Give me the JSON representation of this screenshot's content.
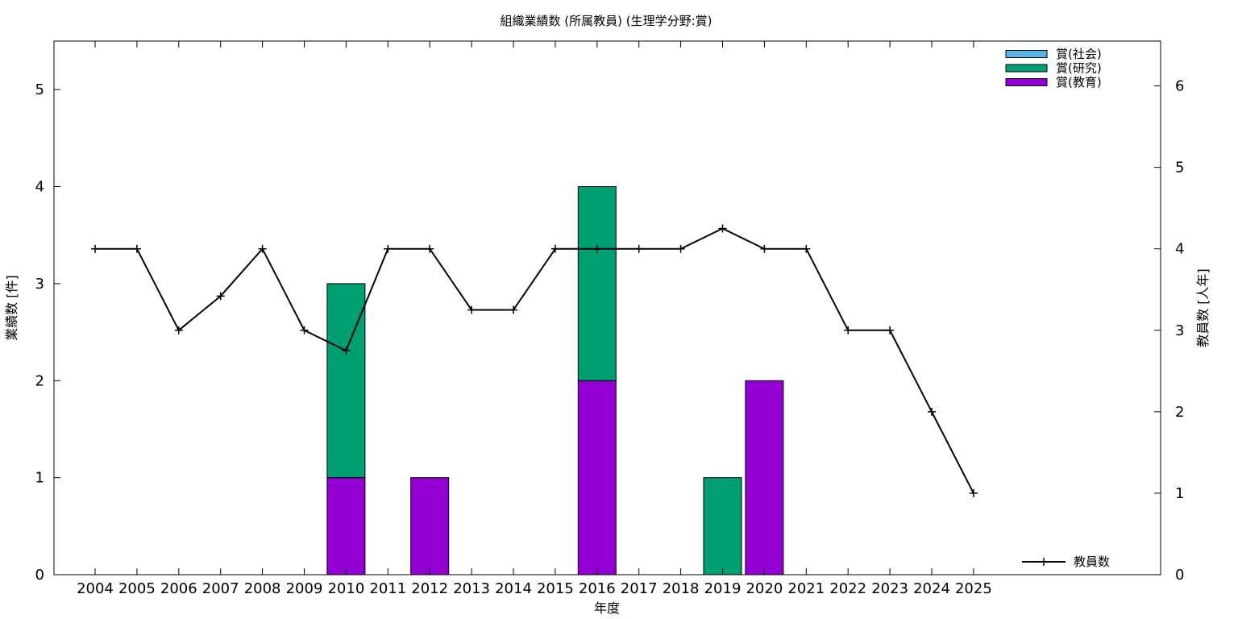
{
  "chart_data": {
    "type": "bar",
    "title": "組織業績数 (所属教員) (生理学分野:賞)",
    "xlabel": "年度",
    "ylabel": "業績数 [件]",
    "y2label": "教員数 [人年]",
    "categories": [
      "2004",
      "2005",
      "2006",
      "2007",
      "2008",
      "2009",
      "2010",
      "2011",
      "2012",
      "2013",
      "2014",
      "2015",
      "2016",
      "2017",
      "2018",
      "2019",
      "2020",
      "2021",
      "2022",
      "2023",
      "2024",
      "2025"
    ],
    "ylim": [
      0,
      5.5
    ],
    "yticks": [
      0,
      1,
      2,
      3,
      4,
      5
    ],
    "y2lim": [
      0,
      6.55
    ],
    "y2ticks": [
      0,
      1,
      2,
      3,
      4,
      5,
      6
    ],
    "stacked": true,
    "series": [
      {
        "name": "賞(教育)",
        "color": "#9400d3",
        "values": [
          0,
          0,
          0,
          0,
          0,
          0,
          1,
          0,
          1,
          0,
          0,
          0,
          2,
          0,
          0,
          0,
          2,
          0,
          0,
          0,
          0,
          0
        ]
      },
      {
        "name": "賞(研究)",
        "color": "#009e73",
        "values": [
          0,
          0,
          0,
          0,
          0,
          0,
          2,
          0,
          0,
          0,
          0,
          0,
          2,
          0,
          0,
          1,
          0,
          0,
          0,
          0,
          0,
          0
        ]
      },
      {
        "name": "賞(社会)",
        "color": "#56b4e9",
        "values": [
          0,
          0,
          0,
          0,
          0,
          0,
          0,
          0,
          0,
          0,
          0,
          0,
          0,
          0,
          0,
          0,
          0,
          0,
          0,
          0,
          0,
          0
        ]
      }
    ],
    "legend_order": [
      "賞(社会)",
      "賞(研究)",
      "賞(教育)"
    ],
    "legend_position": "top-right",
    "line_series": {
      "name": "教員数",
      "axis": "right",
      "color": "#000000",
      "legend_position": "bottom-right",
      "values": [
        4,
        4,
        3,
        3.42,
        4,
        3,
        2.75,
        4,
        4,
        3.25,
        3.25,
        4,
        4,
        4,
        4,
        4.25,
        4,
        4,
        3,
        3,
        2,
        1
      ]
    },
    "grid": false
  }
}
